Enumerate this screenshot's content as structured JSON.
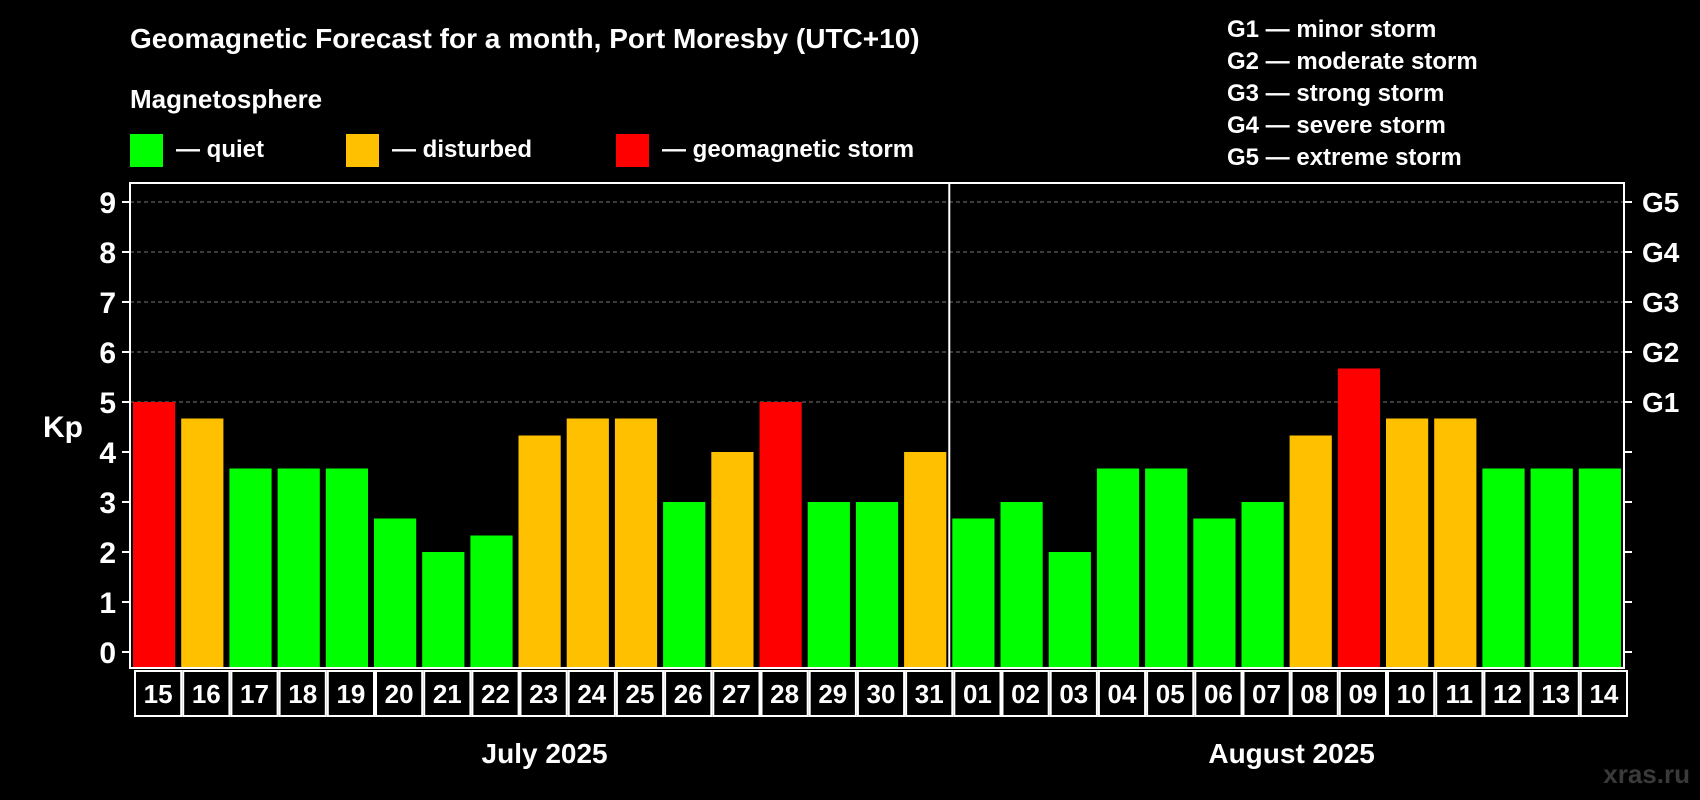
{
  "chart_data": {
    "type": "bar",
    "title": "Geomagnetic Forecast for a month, Port Moresby (UTC+10)",
    "legend": {
      "heading": "Magnetosphere",
      "items": [
        {
          "label": "— quiet",
          "color": "#00ff00"
        },
        {
          "label": "— disturbed",
          "color": "#ffc000"
        },
        {
          "label": "— geomagnetic storm",
          "color": "#ff0000"
        }
      ]
    },
    "storm_scale": [
      "G1 — minor storm",
      "G2 — moderate storm",
      "G3 — strong storm",
      "G4 — severe storm",
      "G5 — extreme storm"
    ],
    "ylabel": "Kp",
    "ylim": [
      0,
      9
    ],
    "yticks": [
      "0",
      "1",
      "2",
      "3",
      "4",
      "5",
      "6",
      "7",
      "8",
      "9"
    ],
    "right_axis_labels": [
      {
        "kp": 5,
        "label": "G1"
      },
      {
        "kp": 6,
        "label": "G2"
      },
      {
        "kp": 7,
        "label": "G3"
      },
      {
        "kp": 8,
        "label": "G4"
      },
      {
        "kp": 9,
        "label": "G5"
      }
    ],
    "categories": [
      "15",
      "16",
      "17",
      "18",
      "19",
      "20",
      "21",
      "22",
      "23",
      "24",
      "25",
      "26",
      "27",
      "28",
      "29",
      "30",
      "31",
      "01",
      "02",
      "03",
      "04",
      "05",
      "06",
      "07",
      "08",
      "09",
      "10",
      "11",
      "12",
      "13",
      "14"
    ],
    "values": [
      5.0,
      4.67,
      3.67,
      3.67,
      3.67,
      2.67,
      2.0,
      2.33,
      4.33,
      4.67,
      4.67,
      3.0,
      4.0,
      5.0,
      3.0,
      3.0,
      4.0,
      2.67,
      3.0,
      2.0,
      3.67,
      3.67,
      2.67,
      3.0,
      4.33,
      5.67,
      4.67,
      4.67,
      3.67,
      3.67,
      3.67
    ],
    "levels": [
      "storm",
      "disturbed",
      "quiet",
      "quiet",
      "quiet",
      "quiet",
      "quiet",
      "quiet",
      "disturbed",
      "disturbed",
      "disturbed",
      "quiet",
      "disturbed",
      "storm",
      "quiet",
      "quiet",
      "disturbed",
      "quiet",
      "quiet",
      "quiet",
      "quiet",
      "quiet",
      "quiet",
      "quiet",
      "disturbed",
      "storm",
      "disturbed",
      "disturbed",
      "quiet",
      "quiet",
      "quiet"
    ],
    "level_colors": {
      "quiet": "#00ff00",
      "disturbed": "#ffc000",
      "storm": "#ff0000"
    },
    "months": [
      {
        "label": "July 2025",
        "first_index": 0,
        "last_index": 16
      },
      {
        "label": "August 2025",
        "first_index": 17,
        "last_index": 30
      }
    ],
    "grid": true
  },
  "watermark": "xras.ru"
}
